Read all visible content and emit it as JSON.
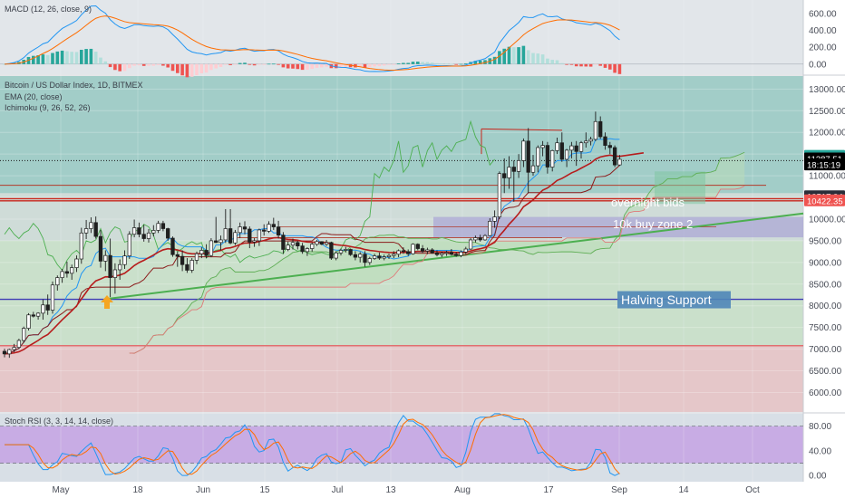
{
  "chart_data": {
    "type": "candlestick",
    "main_pane": {
      "title": "Bitcoin / US Dollar Index, 1D, BITMEX",
      "indicators": [
        "EMA (20, close)",
        "Ichimoku (9, 26, 52, 26)"
      ],
      "y_ticks": [
        "13000.00",
        "12500.00",
        "12000.00",
        "11500.00",
        "11000.00",
        "10500.00",
        "10000.00",
        "9500.00",
        "9000.00",
        "8500.00",
        "8000.00",
        "7500.00",
        "7000.00",
        "6500.00",
        "6000.00"
      ],
      "ylim": [
        5550,
        13300
      ],
      "price_labels": [
        {
          "text": "11447.50",
          "value": 11447.5,
          "color": "#26a69a"
        },
        {
          "text": "11387.51",
          "value": 11387.51,
          "color": "#000000"
        },
        {
          "text": "18:15:19",
          "value": 11250,
          "color": "#000000"
        },
        {
          "text": "10517.04",
          "value": 10517.04,
          "color": "#2a2e39"
        },
        {
          "text": "10422.35",
          "value": 10422.35,
          "color": "#ef5350"
        }
      ],
      "annotations": [
        {
          "text": "overnight bids",
          "value": 10400
        },
        {
          "text": "10k buy zone 2",
          "value": 9900
        },
        {
          "text": "Halving Support",
          "value": 8150
        }
      ],
      "horizontal_levels": [
        {
          "value": 11350,
          "color": "#1b1b1b",
          "style": "dotted"
        },
        {
          "value": 10470,
          "color": "#c8261c",
          "style": "solid"
        },
        {
          "value": 10422,
          "color": "#c8261c",
          "style": "solid"
        },
        {
          "value": 8150,
          "color": "#3e3ab5",
          "style": "solid"
        },
        {
          "value": 7080,
          "color": "#e07070",
          "style": "solid"
        }
      ]
    },
    "macd_pane": {
      "title": "MACD (12, 26, close, 9)",
      "y_ticks": [
        "600.00",
        "400.00",
        "200.00",
        "0.00"
      ],
      "ylim": [
        -120,
        760
      ]
    },
    "stoch_pane": {
      "title": "Stoch RSI (3, 3, 14, 14, close)",
      "y_ticks": [
        "80.00",
        "40.00",
        "0.00"
      ],
      "ylim": [
        -10,
        100
      ],
      "bands": [
        20,
        80
      ]
    },
    "x_ticks": [
      "May",
      "18",
      "Jun",
      "15",
      "Jul",
      "13",
      "Aug",
      "17",
      "Sep",
      "14",
      "Oct"
    ],
    "candles": [
      [
        6950,
        7010,
        6810,
        6890
      ],
      [
        6890,
        7010,
        6800,
        6990
      ],
      [
        6990,
        7120,
        6930,
        7040
      ],
      [
        7040,
        7240,
        7000,
        7200
      ],
      [
        7200,
        7520,
        7150,
        7480
      ],
      [
        7480,
        7830,
        7430,
        7790
      ],
      [
        7790,
        7860,
        7730,
        7760
      ],
      [
        7760,
        7850,
        7680,
        7830
      ],
      [
        7830,
        8150,
        7680,
        8020
      ],
      [
        8020,
        8260,
        7790,
        7900
      ],
      [
        7900,
        8560,
        7820,
        8480
      ],
      [
        8480,
        8700,
        8350,
        8650
      ],
      [
        8650,
        8850,
        8530,
        8790
      ],
      [
        8790,
        9020,
        8650,
        8750
      ],
      [
        8750,
        8950,
        8600,
        8880
      ],
      [
        8880,
        9160,
        8780,
        9080
      ],
      [
        9080,
        9800,
        8970,
        9680
      ],
      [
        9680,
        9980,
        9540,
        9780
      ],
      [
        9780,
        10040,
        9680,
        9920
      ],
      [
        9920,
        10060,
        9550,
        9600
      ],
      [
        9600,
        9750,
        8880,
        9030
      ],
      [
        9030,
        9280,
        8800,
        9160
      ],
      [
        9160,
        9550,
        8200,
        8650
      ],
      [
        8650,
        8980,
        8280,
        8830
      ],
      [
        8830,
        9070,
        8600,
        8950
      ],
      [
        8950,
        9280,
        8850,
        9150
      ],
      [
        9150,
        9720,
        9080,
        9650
      ],
      [
        9650,
        9990,
        9580,
        9800
      ],
      [
        9800,
        9920,
        9580,
        9650
      ],
      [
        9650,
        9870,
        9480,
        9550
      ],
      [
        9550,
        9770,
        9460,
        9680
      ],
      [
        9680,
        9860,
        9600,
        9740
      ],
      [
        9740,
        9960,
        9680,
        9900
      ],
      [
        9900,
        9960,
        9720,
        9780
      ],
      [
        9780,
        9800,
        9500,
        9560
      ],
      [
        9560,
        9600,
        9130,
        9180
      ],
      [
        9180,
        9250,
        8900,
        9140
      ],
      [
        9140,
        9280,
        8800,
        8950
      ],
      [
        8950,
        9100,
        8760,
        8820
      ],
      [
        8820,
        9100,
        8760,
        9050
      ],
      [
        9050,
        9250,
        8960,
        9200
      ],
      [
        9200,
        9350,
        9100,
        9280
      ],
      [
        9280,
        9420,
        9100,
        9160
      ],
      [
        9160,
        9560,
        9120,
        9500
      ],
      [
        9500,
        10050,
        9450,
        9460
      ],
      [
        9460,
        9620,
        9280,
        9520
      ],
      [
        9520,
        10230,
        9450,
        9780
      ],
      [
        9780,
        10230,
        9420,
        9450
      ],
      [
        9450,
        9750,
        9400,
        9690
      ],
      [
        9690,
        9920,
        9560,
        9820
      ],
      [
        9820,
        9950,
        9650,
        9770
      ],
      [
        9770,
        9830,
        9330,
        9470
      ],
      [
        9470,
        9560,
        9360,
        9500
      ],
      [
        9500,
        9780,
        9380,
        9750
      ],
      [
        9750,
        9880,
        9620,
        9720
      ],
      [
        9720,
        9950,
        9680,
        9880
      ],
      [
        9880,
        10030,
        9750,
        9820
      ],
      [
        9820,
        9960,
        9550,
        9630
      ],
      [
        9630,
        9700,
        9200,
        9300
      ],
      [
        9300,
        9480,
        9260,
        9400
      ],
      [
        9400,
        9550,
        9300,
        9460
      ],
      [
        9460,
        9500,
        9300,
        9380
      ],
      [
        9380,
        9450,
        9200,
        9250
      ],
      [
        9250,
        9350,
        9150,
        9320
      ],
      [
        9320,
        9460,
        9250,
        9420
      ],
      [
        9420,
        9520,
        9380,
        9480
      ],
      [
        9480,
        9490,
        9400,
        9420
      ],
      [
        9420,
        9520,
        9380,
        9460
      ],
      [
        9460,
        9480,
        9060,
        9100
      ],
      [
        9100,
        9260,
        9050,
        9220
      ],
      [
        9220,
        9320,
        9160,
        9280
      ],
      [
        9280,
        9360,
        9230,
        9300
      ],
      [
        9300,
        9320,
        9150,
        9180
      ],
      [
        9180,
        9260,
        9050,
        9120
      ],
      [
        9120,
        9240,
        9000,
        9190
      ],
      [
        9190,
        9260,
        8900,
        9000
      ],
      [
        9000,
        9130,
        8940,
        9090
      ],
      [
        9090,
        9200,
        9060,
        9150
      ],
      [
        9150,
        9230,
        9060,
        9100
      ],
      [
        9100,
        9180,
        9050,
        9130
      ],
      [
        9130,
        9200,
        9080,
        9160
      ],
      [
        9160,
        9260,
        9100,
        9190
      ],
      [
        9190,
        9300,
        9120,
        9270
      ],
      [
        9270,
        9350,
        9200,
        9250
      ],
      [
        9250,
        9300,
        9150,
        9200
      ],
      [
        9200,
        9440,
        9180,
        9420
      ],
      [
        9420,
        9440,
        9280,
        9320
      ],
      [
        9320,
        9400,
        9220,
        9260
      ],
      [
        9260,
        9340,
        9190,
        9290
      ],
      [
        9290,
        9330,
        9200,
        9220
      ],
      [
        9220,
        9280,
        9140,
        9180
      ],
      [
        9180,
        9250,
        9120,
        9210
      ],
      [
        9210,
        9270,
        9150,
        9230
      ],
      [
        9230,
        9310,
        9160,
        9190
      ],
      [
        9190,
        9240,
        9130,
        9160
      ],
      [
        9160,
        9280,
        9120,
        9240
      ],
      [
        9240,
        9360,
        9190,
        9310
      ],
      [
        9310,
        9560,
        9290,
        9520
      ],
      [
        9520,
        9620,
        9460,
        9570
      ],
      [
        9570,
        9640,
        9480,
        9520
      ],
      [
        9520,
        9650,
        9500,
        9620
      ],
      [
        9620,
        10020,
        9600,
        9950
      ],
      [
        9950,
        10200,
        9800,
        10050
      ],
      [
        10050,
        11100,
        10000,
        11050
      ],
      [
        11050,
        11400,
        10600,
        10950
      ],
      [
        10950,
        11450,
        10700,
        11200
      ],
      [
        11200,
        11350,
        10400,
        11100
      ],
      [
        11100,
        11500,
        10950,
        11350
      ],
      [
        11350,
        11860,
        11200,
        11800
      ],
      [
        11800,
        12100,
        10600,
        11080
      ],
      [
        11080,
        11480,
        11000,
        11230
      ],
      [
        11230,
        11700,
        11080,
        11650
      ],
      [
        11650,
        11800,
        11450,
        11700
      ],
      [
        11700,
        11780,
        11050,
        11200
      ],
      [
        11200,
        11600,
        11100,
        11580
      ],
      [
        11580,
        11880,
        11500,
        11760
      ],
      [
        11760,
        12000,
        11320,
        11380
      ],
      [
        11380,
        11620,
        11200,
        11590
      ],
      [
        11590,
        11780,
        11400,
        11690
      ],
      [
        11690,
        11800,
        11230,
        11560
      ],
      [
        11560,
        11800,
        11400,
        11760
      ],
      [
        11760,
        12000,
        11650,
        11800
      ],
      [
        11800,
        11900,
        11700,
        11840
      ],
      [
        11840,
        12480,
        11800,
        12250
      ],
      [
        12250,
        12370,
        11850,
        11900
      ],
      [
        11900,
        12000,
        11600,
        11700
      ],
      [
        11700,
        11780,
        11500,
        11650
      ],
      [
        11650,
        11700,
        11200,
        11250
      ],
      [
        11250,
        11480,
        11230,
        11380
      ]
    ]
  }
}
